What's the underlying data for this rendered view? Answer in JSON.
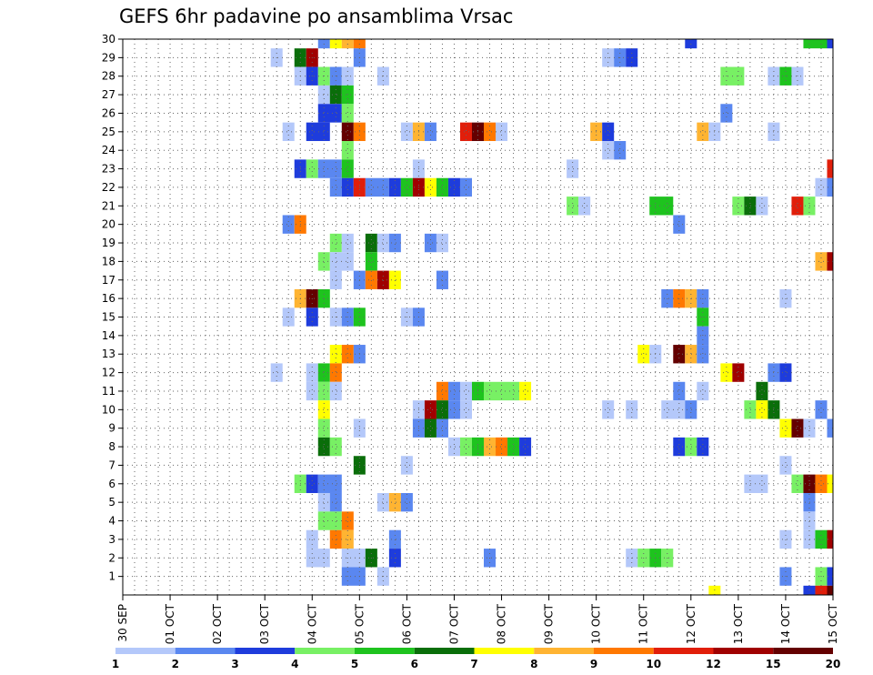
{
  "chart_data": {
    "type": "heatmap",
    "title": "GEFS 6hr padavine po ansamblima Vrsac",
    "x_tick_labels": [
      "30 SEP",
      "01 OCT",
      "02 OCT",
      "03 OCT",
      "04 OCT",
      "05 OCT",
      "06 OCT",
      "07 OCT",
      "08 OCT",
      "09 OCT",
      "10 OCT",
      "11 OCT",
      "12 OCT",
      "13 OCT",
      "14 OCT",
      "15 OCT"
    ],
    "y_tick_labels": [
      "1",
      "2",
      "3",
      "4",
      "5",
      "6",
      "7",
      "8",
      "9",
      "10",
      "11",
      "12",
      "13",
      "14",
      "15",
      "16",
      "17",
      "18",
      "19",
      "20",
      "21",
      "22",
      "23",
      "24",
      "25",
      "26",
      "27",
      "28",
      "29",
      "30"
    ],
    "xlim_steps": [
      0,
      60
    ],
    "ylim": [
      0,
      30
    ],
    "grid": true,
    "colorbar": {
      "labels": [
        "1",
        "2",
        "3",
        "4",
        "5",
        "6",
        "7",
        "8",
        "9",
        "10",
        "12",
        "15",
        "20"
      ],
      "colors": [
        "#b4c8fa",
        "#5a87f0",
        "#1e3cdc",
        "#78f064",
        "#1ec31e",
        "#0a6e0a",
        "#ffff00",
        "#ffb432",
        "#ff7800",
        "#e11e0a",
        "#a00000",
        "#640000"
      ]
    },
    "cells_format": "[member, x_step_start, x_step_end, color_index]",
    "cells": [
      [
        30,
        16.5,
        17.5,
        1
      ],
      [
        30,
        17.5,
        18.5,
        6
      ],
      [
        30,
        18.5,
        19.5,
        7
      ],
      [
        30,
        19.5,
        20.5,
        8
      ],
      [
        30,
        47.5,
        48.5,
        2
      ],
      [
        30,
        57.5,
        59.5,
        4
      ],
      [
        30,
        59.5,
        60,
        2
      ],
      [
        29,
        12.5,
        13.5,
        0
      ],
      [
        29,
        14.5,
        15.5,
        5
      ],
      [
        29,
        15.5,
        16.5,
        10
      ],
      [
        29,
        19.5,
        20.5,
        1
      ],
      [
        29,
        40.5,
        41.5,
        0
      ],
      [
        29,
        41.5,
        42.5,
        1
      ],
      [
        29,
        42.5,
        43.5,
        2
      ],
      [
        28,
        14.5,
        15.5,
        0
      ],
      [
        28,
        15.5,
        16.5,
        2
      ],
      [
        28,
        16.5,
        17.5,
        3
      ],
      [
        28,
        17.5,
        18.5,
        1
      ],
      [
        28,
        18.5,
        19.5,
        0
      ],
      [
        28,
        21.5,
        22.5,
        0
      ],
      [
        28,
        50.5,
        52.5,
        3
      ],
      [
        28,
        54.5,
        55.5,
        0
      ],
      [
        28,
        55.5,
        56.5,
        4
      ],
      [
        28,
        56.5,
        57.5,
        0
      ],
      [
        27,
        16.5,
        17.5,
        0
      ],
      [
        27,
        17.5,
        18.5,
        5
      ],
      [
        27,
        18.5,
        19.5,
        4
      ],
      [
        26,
        16.5,
        18.5,
        2
      ],
      [
        26,
        18.5,
        19.5,
        3
      ],
      [
        26,
        50.5,
        51.5,
        1
      ],
      [
        25,
        13.5,
        14.5,
        0
      ],
      [
        25,
        15.5,
        17.5,
        2
      ],
      [
        25,
        18.5,
        19.5,
        11
      ],
      [
        25,
        19.5,
        20.5,
        8
      ],
      [
        25,
        23.5,
        24.5,
        0
      ],
      [
        25,
        24.5,
        25.5,
        7
      ],
      [
        25,
        25.5,
        26.5,
        1
      ],
      [
        25,
        28.5,
        29.5,
        9
      ],
      [
        25,
        29.5,
        30.5,
        11
      ],
      [
        25,
        30.5,
        31.5,
        8
      ],
      [
        25,
        31.5,
        32.5,
        0
      ],
      [
        25,
        39.5,
        40.5,
        7
      ],
      [
        25,
        40.5,
        41.5,
        2
      ],
      [
        25,
        48.5,
        49.5,
        7
      ],
      [
        25,
        49.5,
        50.5,
        0
      ],
      [
        25,
        54.5,
        55.5,
        0
      ],
      [
        24,
        18.5,
        19.5,
        3
      ],
      [
        24,
        40.5,
        41.5,
        0
      ],
      [
        24,
        41.5,
        42.5,
        1
      ],
      [
        23,
        14.5,
        15.5,
        2
      ],
      [
        23,
        15.5,
        16.5,
        3
      ],
      [
        23,
        16.5,
        18.5,
        1
      ],
      [
        23,
        18.5,
        19.5,
        4
      ],
      [
        23,
        24.5,
        25.5,
        0
      ],
      [
        23,
        37.5,
        38.5,
        0
      ],
      [
        23,
        59.5,
        60,
        9
      ],
      [
        22,
        17.5,
        18.5,
        1
      ],
      [
        22,
        18.5,
        19.5,
        2
      ],
      [
        22,
        19.5,
        20.5,
        9
      ],
      [
        22,
        20.5,
        22.5,
        1
      ],
      [
        22,
        22.5,
        23.5,
        2
      ],
      [
        22,
        23.5,
        24.5,
        4
      ],
      [
        22,
        24.5,
        25.5,
        10
      ],
      [
        22,
        25.5,
        26.5,
        6
      ],
      [
        22,
        26.5,
        27.5,
        4
      ],
      [
        22,
        27.5,
        28.5,
        2
      ],
      [
        22,
        28.5,
        29.5,
        1
      ],
      [
        22,
        58.5,
        59.5,
        0
      ],
      [
        22,
        59.5,
        60,
        1
      ],
      [
        21,
        37.5,
        38.5,
        3
      ],
      [
        21,
        38.5,
        39.5,
        0
      ],
      [
        21,
        44.5,
        46.5,
        4
      ],
      [
        21,
        51.5,
        52.5,
        3
      ],
      [
        21,
        52.5,
        53.5,
        5
      ],
      [
        21,
        53.5,
        54.5,
        0
      ],
      [
        21,
        56.5,
        57.5,
        9
      ],
      [
        21,
        57.5,
        58.5,
        3
      ],
      [
        20,
        13.5,
        14.5,
        1
      ],
      [
        20,
        14.5,
        15.5,
        8
      ],
      [
        20,
        46.5,
        47.5,
        1
      ],
      [
        19,
        17.5,
        18.5,
        3
      ],
      [
        19,
        18.5,
        19.5,
        0
      ],
      [
        19,
        20.5,
        21.5,
        5
      ],
      [
        19,
        21.5,
        22.5,
        0
      ],
      [
        19,
        22.5,
        23.5,
        1
      ],
      [
        19,
        25.5,
        26.5,
        1
      ],
      [
        19,
        26.5,
        27.5,
        0
      ],
      [
        18,
        16.5,
        17.5,
        3
      ],
      [
        18,
        17.5,
        19.5,
        0
      ],
      [
        18,
        20.5,
        21.5,
        4
      ],
      [
        18,
        58.5,
        59.5,
        7
      ],
      [
        18,
        59.5,
        60,
        10
      ],
      [
        17,
        17.5,
        18.5,
        0
      ],
      [
        17,
        19.5,
        20.5,
        1
      ],
      [
        17,
        20.5,
        21.5,
        8
      ],
      [
        17,
        21.5,
        22.5,
        10
      ],
      [
        17,
        22.5,
        23.5,
        6
      ],
      [
        17,
        26.5,
        27.5,
        1
      ],
      [
        16,
        14.5,
        15.5,
        7
      ],
      [
        16,
        15.5,
        16.5,
        11
      ],
      [
        16,
        16.5,
        17.5,
        4
      ],
      [
        16,
        45.5,
        46.5,
        1
      ],
      [
        16,
        46.5,
        47.5,
        8
      ],
      [
        16,
        47.5,
        48.5,
        7
      ],
      [
        16,
        48.5,
        49.5,
        1
      ],
      [
        16,
        55.5,
        56.5,
        0
      ],
      [
        15,
        13.5,
        14.5,
        0
      ],
      [
        15,
        15.5,
        16.5,
        2
      ],
      [
        15,
        17.5,
        18.5,
        0
      ],
      [
        15,
        18.5,
        19.5,
        1
      ],
      [
        15,
        19.5,
        20.5,
        4
      ],
      [
        15,
        23.5,
        24.5,
        0
      ],
      [
        15,
        24.5,
        25.5,
        1
      ],
      [
        15,
        48.5,
        49.5,
        4
      ],
      [
        14,
        48.5,
        49.5,
        1
      ],
      [
        13,
        17.5,
        18.5,
        6
      ],
      [
        13,
        18.5,
        19.5,
        8
      ],
      [
        13,
        19.5,
        20.5,
        1
      ],
      [
        13,
        43.5,
        44.5,
        6
      ],
      [
        13,
        44.5,
        45.5,
        0
      ],
      [
        13,
        46.5,
        47.5,
        11
      ],
      [
        13,
        47.5,
        48.5,
        7
      ],
      [
        13,
        48.5,
        49.5,
        1
      ],
      [
        12,
        12.5,
        13.5,
        0
      ],
      [
        12,
        15.5,
        16.5,
        0
      ],
      [
        12,
        16.5,
        17.5,
        4
      ],
      [
        12,
        17.5,
        18.5,
        8
      ],
      [
        12,
        50.5,
        51.5,
        6
      ],
      [
        12,
        51.5,
        52.5,
        10
      ],
      [
        12,
        54.5,
        55.5,
        1
      ],
      [
        12,
        55.5,
        56.5,
        2
      ],
      [
        11,
        15.5,
        16.5,
        0
      ],
      [
        11,
        16.5,
        17.5,
        3
      ],
      [
        11,
        17.5,
        18.5,
        0
      ],
      [
        11,
        26.5,
        27.5,
        8
      ],
      [
        11,
        27.5,
        28.5,
        1
      ],
      [
        11,
        28.5,
        29.5,
        0
      ],
      [
        11,
        29.5,
        30.5,
        4
      ],
      [
        11,
        30.5,
        33.5,
        3
      ],
      [
        11,
        33.5,
        34.5,
        6
      ],
      [
        11,
        46.5,
        47.5,
        1
      ],
      [
        11,
        48.5,
        49.5,
        0
      ],
      [
        11,
        53.5,
        54.5,
        5
      ],
      [
        10,
        16.5,
        17.5,
        6
      ],
      [
        10,
        24.5,
        25.5,
        0
      ],
      [
        10,
        25.5,
        26.5,
        10
      ],
      [
        10,
        26.5,
        27.5,
        5
      ],
      [
        10,
        27.5,
        28.5,
        1
      ],
      [
        10,
        28.5,
        29.5,
        0
      ],
      [
        10,
        40.5,
        41.5,
        0
      ],
      [
        10,
        42.5,
        43.5,
        0
      ],
      [
        10,
        45.5,
        47.5,
        0
      ],
      [
        10,
        47.5,
        48.5,
        1
      ],
      [
        10,
        52.5,
        53.5,
        3
      ],
      [
        10,
        53.5,
        54.5,
        6
      ],
      [
        10,
        54.5,
        55.5,
        5
      ],
      [
        10,
        58.5,
        59.5,
        1
      ],
      [
        9,
        16.5,
        17.5,
        3
      ],
      [
        9,
        19.5,
        20.5,
        0
      ],
      [
        9,
        24.5,
        25.5,
        1
      ],
      [
        9,
        25.5,
        26.5,
        5
      ],
      [
        9,
        26.5,
        27.5,
        1
      ],
      [
        9,
        55.5,
        56.5,
        6
      ],
      [
        9,
        56.5,
        57.5,
        11
      ],
      [
        9,
        57.5,
        58.5,
        0
      ],
      [
        9,
        59.5,
        60,
        1
      ],
      [
        8,
        16.5,
        17.5,
        5
      ],
      [
        8,
        17.5,
        18.5,
        3
      ],
      [
        8,
        27.5,
        28.5,
        0
      ],
      [
        8,
        28.5,
        29.5,
        3
      ],
      [
        8,
        29.5,
        30.5,
        4
      ],
      [
        8,
        30.5,
        31.5,
        7
      ],
      [
        8,
        31.5,
        32.5,
        8
      ],
      [
        8,
        32.5,
        33.5,
        4
      ],
      [
        8,
        33.5,
        34.5,
        2
      ],
      [
        8,
        46.5,
        47.5,
        2
      ],
      [
        8,
        47.5,
        48.5,
        3
      ],
      [
        8,
        48.5,
        49.5,
        2
      ],
      [
        7,
        19.5,
        20.5,
        5
      ],
      [
        7,
        23.5,
        24.5,
        0
      ],
      [
        7,
        55.5,
        56.5,
        0
      ],
      [
        6,
        14.5,
        15.5,
        3
      ],
      [
        6,
        15.5,
        16.5,
        2
      ],
      [
        6,
        16.5,
        18.5,
        1
      ],
      [
        6,
        52.5,
        54.5,
        0
      ],
      [
        6,
        56.5,
        57.5,
        3
      ],
      [
        6,
        57.5,
        58.5,
        11
      ],
      [
        6,
        58.5,
        59.5,
        8
      ],
      [
        6,
        59.5,
        60,
        6
      ],
      [
        5,
        16.5,
        17.5,
        0
      ],
      [
        5,
        17.5,
        18.5,
        1
      ],
      [
        5,
        21.5,
        22.5,
        0
      ],
      [
        5,
        22.5,
        23.5,
        7
      ],
      [
        5,
        23.5,
        24.5,
        1
      ],
      [
        5,
        57.5,
        58.5,
        1
      ],
      [
        4,
        16.5,
        18.5,
        3
      ],
      [
        4,
        18.5,
        19.5,
        8
      ],
      [
        4,
        57.5,
        58.5,
        0
      ],
      [
        3,
        15.5,
        16.5,
        0
      ],
      [
        3,
        17.5,
        18.5,
        8
      ],
      [
        3,
        18.5,
        19.5,
        7
      ],
      [
        3,
        22.5,
        23.5,
        1
      ],
      [
        3,
        55.5,
        56.5,
        0
      ],
      [
        3,
        57.5,
        58.5,
        0
      ],
      [
        3,
        58.5,
        59.5,
        4
      ],
      [
        3,
        59.5,
        60,
        10
      ],
      [
        2,
        15.5,
        17.5,
        0
      ],
      [
        2,
        18.5,
        20.5,
        0
      ],
      [
        2,
        20.5,
        21.5,
        5
      ],
      [
        2,
        22.5,
        23.5,
        2
      ],
      [
        2,
        30.5,
        31.5,
        1
      ],
      [
        2,
        42.5,
        43.5,
        0
      ],
      [
        2,
        43.5,
        44.5,
        3
      ],
      [
        2,
        44.5,
        45.5,
        4
      ],
      [
        2,
        45.5,
        46.5,
        3
      ],
      [
        1,
        18.5,
        20.5,
        1
      ],
      [
        1,
        21.5,
        22.5,
        0
      ],
      [
        1,
        55.5,
        56.5,
        1
      ],
      [
        1,
        58.5,
        59.5,
        3
      ],
      [
        1,
        59.5,
        60,
        2
      ],
      [
        0,
        49.5,
        50.5,
        6
      ],
      [
        0,
        57.5,
        58.5,
        2
      ],
      [
        0,
        58.5,
        59.5,
        9
      ],
      [
        0,
        59.5,
        60,
        11
      ]
    ]
  }
}
